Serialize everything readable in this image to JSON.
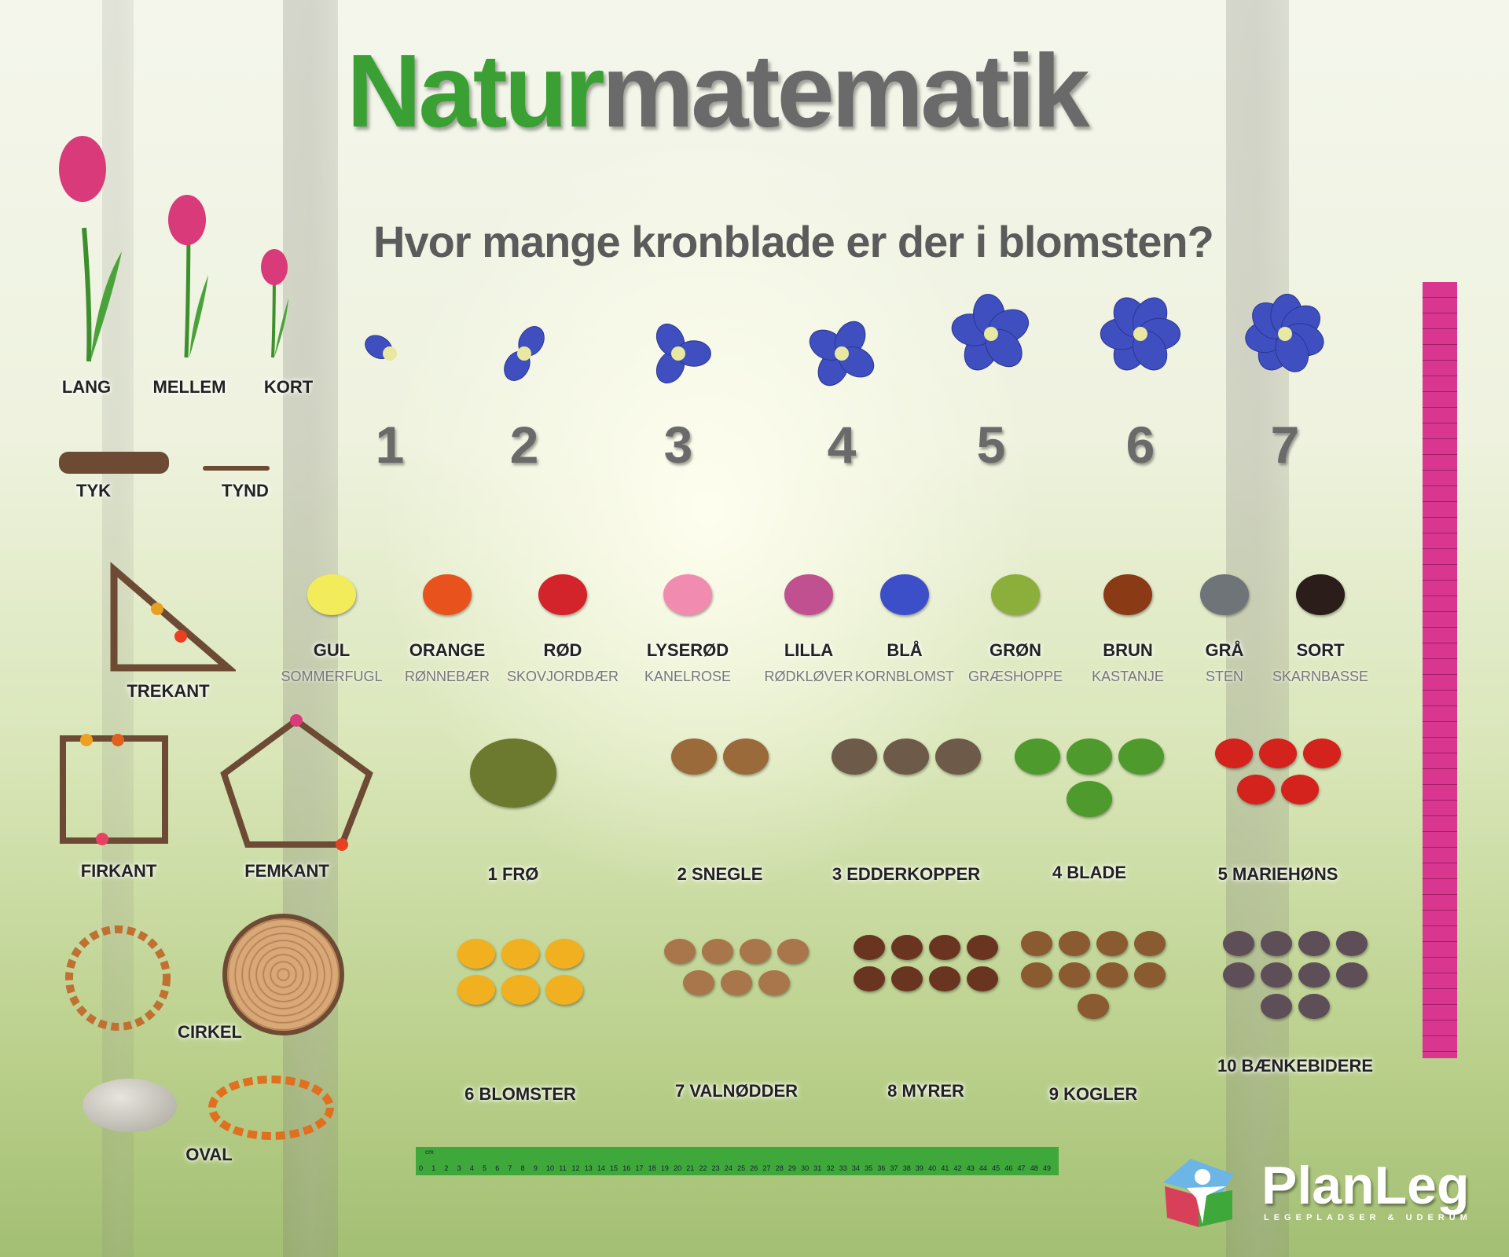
{
  "title": {
    "part1": "Natur",
    "part2": "matematik"
  },
  "subtitle": "Hvor mange kronblade er der i blomsten?",
  "petal_numbers": [
    "1",
    "2",
    "3",
    "4",
    "5",
    "6",
    "7"
  ],
  "sizes": [
    "LANG",
    "MELLEM",
    "KORT"
  ],
  "thickness": [
    "TYK",
    "TYND"
  ],
  "colors": [
    {
      "label": "GUL",
      "sub": "SOMMERFUGL",
      "color": "#f2ec5a"
    },
    {
      "label": "ORANGE",
      "sub": "RØNNEBÆR",
      "color": "#e8531d"
    },
    {
      "label": "RØD",
      "sub": "SKOVJORDBÆR",
      "color": "#d3232b"
    },
    {
      "label": "LYSERØD",
      "sub": "KANELROSE",
      "color": "#f28bb0"
    },
    {
      "label": "LILLA",
      "sub": "RØDKLØVER",
      "color": "#c0508f"
    },
    {
      "label": "BLÅ",
      "sub": "KORNBLOMST",
      "color": "#3c4fc9"
    },
    {
      "label": "GRØN",
      "sub": "GRÆSHOPPE",
      "color": "#8cae3a"
    },
    {
      "label": "BRUN",
      "sub": "KASTANJE",
      "color": "#8a3a14"
    },
    {
      "label": "GRÅ",
      "sub": "STEN",
      "color": "#6f7478"
    },
    {
      "label": "SORT",
      "sub": "SKARNBASSE",
      "color": "#2a1d1a"
    }
  ],
  "shapes": [
    "TREKANT",
    "FIRKANT",
    "FEMKANT",
    "CIRKEL",
    "OVAL"
  ],
  "counts": [
    {
      "label": "1 FRØ",
      "n": 1,
      "color": "#6b7a2e"
    },
    {
      "label": "2 SNEGLE",
      "n": 2,
      "color": "#9a6a3a"
    },
    {
      "label": "3 EDDERKOPPER",
      "n": 3,
      "color": "#6e5a48"
    },
    {
      "label": "4 BLADE",
      "n": 4,
      "color": "#4f9a2c"
    },
    {
      "label": "5 MARIEHØNS",
      "n": 5,
      "color": "#d4221c"
    },
    {
      "label": "6 BLOMSTER",
      "n": 6,
      "color": "#f0b020"
    },
    {
      "label": "7 VALNØDDER",
      "n": 7,
      "color": "#a8764a"
    },
    {
      "label": "8 MYRER",
      "n": 8,
      "color": "#6a3520"
    },
    {
      "label": "9 KOGLER",
      "n": 9,
      "color": "#8a5a30"
    },
    {
      "label": "10 BÆNKEBIDERE",
      "n": 10,
      "color": "#5e4e58"
    }
  ],
  "ruler": {
    "unit": "cm",
    "max": 49,
    "color": "#3fa83a",
    "vertical_color": "#d9368f"
  },
  "logo": {
    "name": "PlanLeg",
    "tagline": "LEGEPLADSER & UDERUM"
  }
}
